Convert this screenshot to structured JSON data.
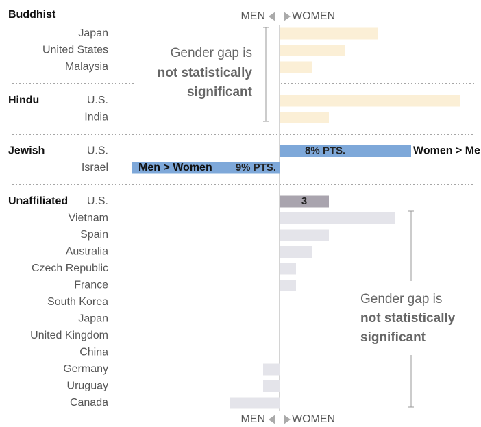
{
  "chart_data": {
    "type": "bar",
    "orientation": "horizontal",
    "axis_labels": {
      "left": "MEN",
      "right": "WOMEN"
    },
    "xlim": [
      -9,
      11.5
    ],
    "groups": [
      {
        "name": "Buddhist",
        "categories": [
          "Japan",
          "United States",
          "Malaysia"
        ],
        "values": [
          6,
          4,
          2
        ],
        "color": "#fbefd6"
      },
      {
        "name": "Hindu",
        "categories": [
          "U.S.",
          "India"
        ],
        "values": [
          11,
          3
        ],
        "color": "#fbefd6"
      },
      {
        "name": "Jewish",
        "categories": [
          "U.S.",
          "Israel"
        ],
        "values": [
          8,
          -9
        ],
        "color": "#7ea8d9",
        "value_labels": [
          "8% PTS.",
          "9% PTS."
        ],
        "side_labels": [
          "Women > Men",
          "Men > Women"
        ]
      },
      {
        "name": "Unaffiliated",
        "categories": [
          "U.S.",
          "Vietnam",
          "Spain",
          "Australia",
          "Czech Republic",
          "France",
          "South Korea",
          "Japan",
          "United Kingdom",
          "China",
          "Germany",
          "Uruguay",
          "Canada"
        ],
        "values": [
          3,
          7,
          3,
          2,
          1,
          1,
          0,
          0,
          0,
          0,
          -1,
          -1,
          -3
        ],
        "colors": [
          "#a9a4ae",
          "#e4e4ea",
          "#e4e4ea",
          "#e4e4ea",
          "#e4e4ea",
          "#e4e4ea",
          "#e4e4ea",
          "#e4e4ea",
          "#e4e4ea",
          "#e4e4ea",
          "#e4e4ea",
          "#e4e4ea",
          "#e4e4ea"
        ],
        "value_labels": [
          "3",
          null,
          null,
          null,
          null,
          null,
          null,
          null,
          null,
          null,
          null,
          null,
          null
        ]
      }
    ],
    "annotations": [
      {
        "lines": [
          "Gender gap is",
          "not statistically",
          "significant"
        ]
      },
      {
        "lines": [
          "Gender gap is",
          "not statistically",
          "significant"
        ]
      }
    ]
  }
}
